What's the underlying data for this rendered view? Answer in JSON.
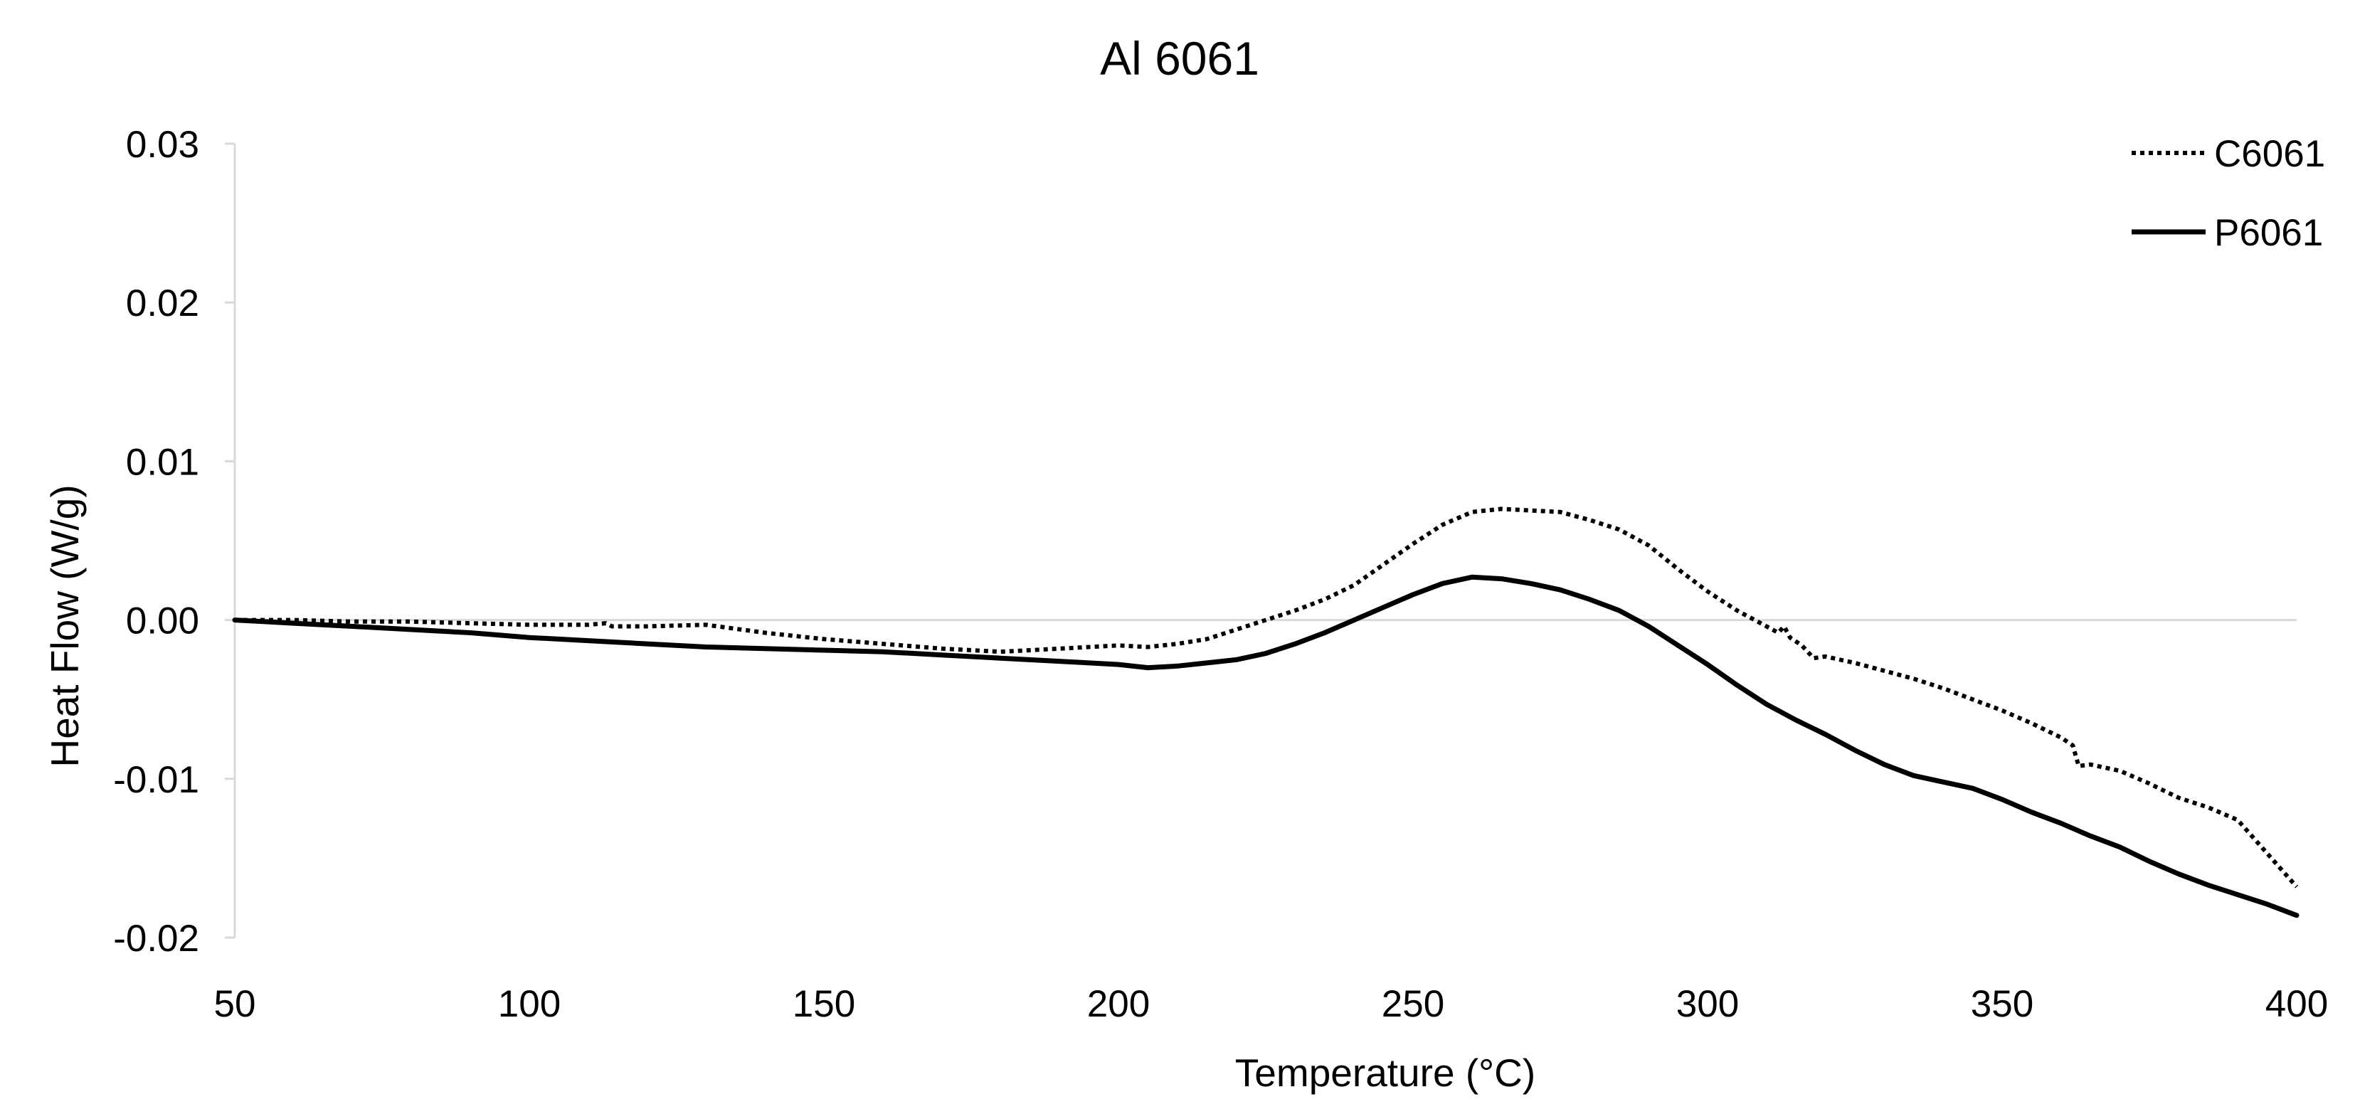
{
  "chart_data": {
    "type": "line",
    "title": "Al 6061",
    "xlabel": "Temperature (°C)",
    "ylabel": "Heat Flow (W/g)",
    "xlim": [
      50,
      400
    ],
    "ylim": [
      -0.02,
      0.03
    ],
    "x_ticks": [
      50,
      100,
      150,
      200,
      250,
      300,
      350,
      400
    ],
    "x_tick_labels": [
      "50",
      "100",
      "150",
      "200",
      "250",
      "300",
      "350",
      "400"
    ],
    "y_ticks": [
      0.03,
      0.02,
      0.01,
      0.0,
      -0.01,
      -0.02
    ],
    "y_tick_labels": [
      "0.03",
      "0.02",
      "0.01",
      "0.00",
      "-0.01",
      "-0.02"
    ],
    "grid": false,
    "legend_position": "top-right",
    "series": [
      {
        "name": "C6061",
        "style": "dotted",
        "color": "#000000",
        "points": [
          [
            50,
            0.0
          ],
          [
            60,
            0.0
          ],
          [
            70,
            -0.0001
          ],
          [
            80,
            -0.0001
          ],
          [
            90,
            -0.0002
          ],
          [
            100,
            -0.0003
          ],
          [
            110,
            -0.0003
          ],
          [
            113,
            -0.0002
          ],
          [
            114,
            -0.0004
          ],
          [
            120,
            -0.0004
          ],
          [
            130,
            -0.0003
          ],
          [
            140,
            -0.0008
          ],
          [
            150,
            -0.0012
          ],
          [
            160,
            -0.0015
          ],
          [
            170,
            -0.0018
          ],
          [
            180,
            -0.002
          ],
          [
            190,
            -0.0018
          ],
          [
            200,
            -0.0016
          ],
          [
            205,
            -0.0017
          ],
          [
            210,
            -0.0015
          ],
          [
            215,
            -0.0012
          ],
          [
            220,
            -0.0006
          ],
          [
            225,
            0.0
          ],
          [
            230,
            0.0006
          ],
          [
            235,
            0.0013
          ],
          [
            240,
            0.0022
          ],
          [
            245,
            0.0035
          ],
          [
            250,
            0.0048
          ],
          [
            255,
            0.006
          ],
          [
            260,
            0.0068
          ],
          [
            265,
            0.007
          ],
          [
            270,
            0.0069
          ],
          [
            275,
            0.0068
          ],
          [
            280,
            0.0063
          ],
          [
            285,
            0.0057
          ],
          [
            290,
            0.0047
          ],
          [
            295,
            0.0032
          ],
          [
            300,
            0.0018
          ],
          [
            305,
            0.0006
          ],
          [
            310,
            -0.0004
          ],
          [
            312,
            -0.0008
          ],
          [
            313,
            -0.0004
          ],
          [
            314,
            -0.0011
          ],
          [
            316,
            -0.0016
          ],
          [
            318,
            -0.0024
          ],
          [
            320,
            -0.0023
          ],
          [
            325,
            -0.0027
          ],
          [
            330,
            -0.0032
          ],
          [
            335,
            -0.0037
          ],
          [
            340,
            -0.0043
          ],
          [
            345,
            -0.005
          ],
          [
            350,
            -0.0057
          ],
          [
            355,
            -0.0065
          ],
          [
            360,
            -0.0074
          ],
          [
            362,
            -0.0079
          ],
          [
            363,
            -0.0092
          ],
          [
            365,
            -0.0091
          ],
          [
            370,
            -0.0095
          ],
          [
            375,
            -0.0103
          ],
          [
            380,
            -0.0112
          ],
          [
            385,
            -0.0118
          ],
          [
            390,
            -0.0126
          ],
          [
            395,
            -0.0147
          ],
          [
            400,
            -0.0168
          ]
        ]
      },
      {
        "name": "P6061",
        "style": "solid",
        "color": "#000000",
        "points": [
          [
            50,
            0.0
          ],
          [
            60,
            -0.0002
          ],
          [
            70,
            -0.0004
          ],
          [
            80,
            -0.0006
          ],
          [
            90,
            -0.0008
          ],
          [
            100,
            -0.0011
          ],
          [
            110,
            -0.0013
          ],
          [
            120,
            -0.0015
          ],
          [
            130,
            -0.0017
          ],
          [
            140,
            -0.0018
          ],
          [
            150,
            -0.0019
          ],
          [
            160,
            -0.002
          ],
          [
            170,
            -0.0022
          ],
          [
            180,
            -0.0024
          ],
          [
            190,
            -0.0026
          ],
          [
            200,
            -0.0028
          ],
          [
            205,
            -0.003
          ],
          [
            210,
            -0.0029
          ],
          [
            215,
            -0.0027
          ],
          [
            220,
            -0.0025
          ],
          [
            225,
            -0.0021
          ],
          [
            230,
            -0.0015
          ],
          [
            235,
            -0.0008
          ],
          [
            240,
            0.0
          ],
          [
            245,
            0.0008
          ],
          [
            250,
            0.0016
          ],
          [
            255,
            0.0023
          ],
          [
            260,
            0.0027
          ],
          [
            265,
            0.0026
          ],
          [
            270,
            0.0023
          ],
          [
            275,
            0.0019
          ],
          [
            280,
            0.0013
          ],
          [
            285,
            0.0006
          ],
          [
            290,
            -0.0004
          ],
          [
            295,
            -0.0016
          ],
          [
            300,
            -0.0028
          ],
          [
            305,
            -0.0041
          ],
          [
            310,
            -0.0053
          ],
          [
            315,
            -0.0063
          ],
          [
            320,
            -0.0072
          ],
          [
            325,
            -0.0082
          ],
          [
            330,
            -0.0091
          ],
          [
            335,
            -0.0098
          ],
          [
            340,
            -0.0102
          ],
          [
            345,
            -0.0106
          ],
          [
            350,
            -0.0113
          ],
          [
            355,
            -0.0121
          ],
          [
            360,
            -0.0128
          ],
          [
            365,
            -0.0136
          ],
          [
            370,
            -0.0143
          ],
          [
            375,
            -0.0152
          ],
          [
            380,
            -0.016
          ],
          [
            385,
            -0.0167
          ],
          [
            390,
            -0.0173
          ],
          [
            395,
            -0.0179
          ],
          [
            400,
            -0.0186
          ]
        ]
      }
    ]
  }
}
